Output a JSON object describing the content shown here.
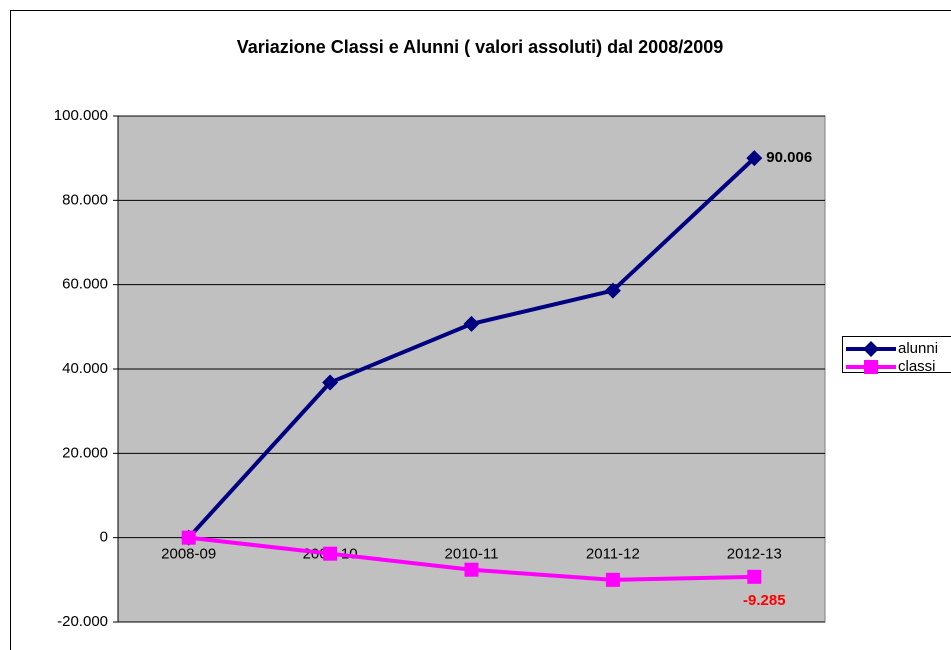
{
  "chart_data": {
    "type": "line",
    "title": "Variazione Classi e Alunni ( valori assoluti) dal 2008/2009",
    "categories": [
      "2008-09",
      "2009-10",
      "2010-11",
      "2011-12",
      "2012-13"
    ],
    "series": [
      {
        "name": "alunni",
        "color": "#000080",
        "marker": "diamond",
        "values": [
          0,
          36800,
          50700,
          58600,
          90006
        ],
        "value_labels": [
          null,
          null,
          null,
          null,
          "90.006"
        ],
        "label_color": "#000000"
      },
      {
        "name": "classi",
        "color": "#ff00ff",
        "marker": "square",
        "values": [
          0,
          -3800,
          -7600,
          -10000,
          -9285
        ],
        "value_labels": [
          null,
          null,
          null,
          null,
          "-9.285"
        ],
        "label_color": "#ff0000"
      }
    ],
    "ylim": [
      -20000,
      100000
    ],
    "yticks": [
      {
        "value": -20000,
        "label": "-20.000"
      },
      0,
      {
        "value": 20000,
        "label": "20.000"
      },
      {
        "value": 40000,
        "label": "40.000"
      },
      {
        "value": 60000,
        "label": "60.000"
      },
      {
        "value": 80000,
        "label": "80.000"
      },
      {
        "value": 100000,
        "label": "100.000"
      }
    ],
    "grid": true,
    "legend": "right",
    "plot_background": "#c0c0c0"
  }
}
